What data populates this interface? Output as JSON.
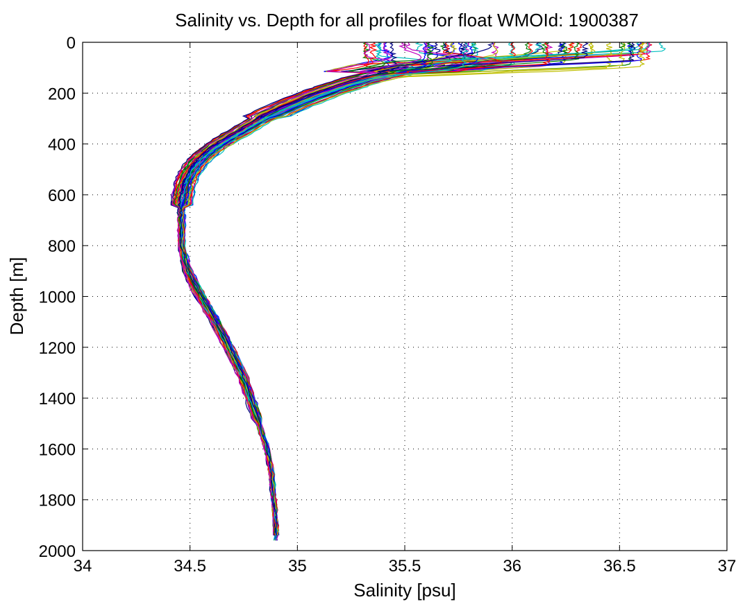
{
  "chart_data": {
    "type": "line",
    "title": "Salinity vs. Depth for all profiles for float WMOId: 1900387",
    "xlabel": "Salinity [psu]",
    "ylabel": "Depth [m]",
    "xlim": [
      34,
      37
    ],
    "ylim": [
      0,
      2000
    ],
    "y_reversed": true,
    "grid": true,
    "x_ticks": [
      "34",
      "34.5",
      "35",
      "35.5",
      "36",
      "36.5",
      "37"
    ],
    "y_ticks": [
      "0",
      "200",
      "400",
      "600",
      "800",
      "1000",
      "1200",
      "1400",
      "1600",
      "1800",
      "2000"
    ],
    "colors": [
      "#0000ff",
      "#ff0000",
      "#008000",
      "#00bfbf",
      "#bf00bf",
      "#bfbf00",
      "#000080"
    ],
    "mean_profile": {
      "depth": [
        0,
        30,
        60,
        100,
        150,
        200,
        250,
        300,
        350,
        400,
        450,
        500,
        550,
        600,
        650,
        700,
        800,
        900,
        1000,
        1100,
        1200,
        1300,
        1400,
        1500,
        1600,
        1700,
        1800,
        1900,
        1960
      ],
      "salinity": [
        35.95,
        35.9,
        35.8,
        35.55,
        35.3,
        35.12,
        34.97,
        34.84,
        34.74,
        34.64,
        34.56,
        34.51,
        34.48,
        34.47,
        34.46,
        34.46,
        34.46,
        34.49,
        34.55,
        34.62,
        34.68,
        34.74,
        34.78,
        34.82,
        34.86,
        34.88,
        34.89,
        34.9,
        34.9
      ]
    },
    "profile_count": 70,
    "surface_salinity_range": [
      35.3,
      36.7
    ]
  }
}
